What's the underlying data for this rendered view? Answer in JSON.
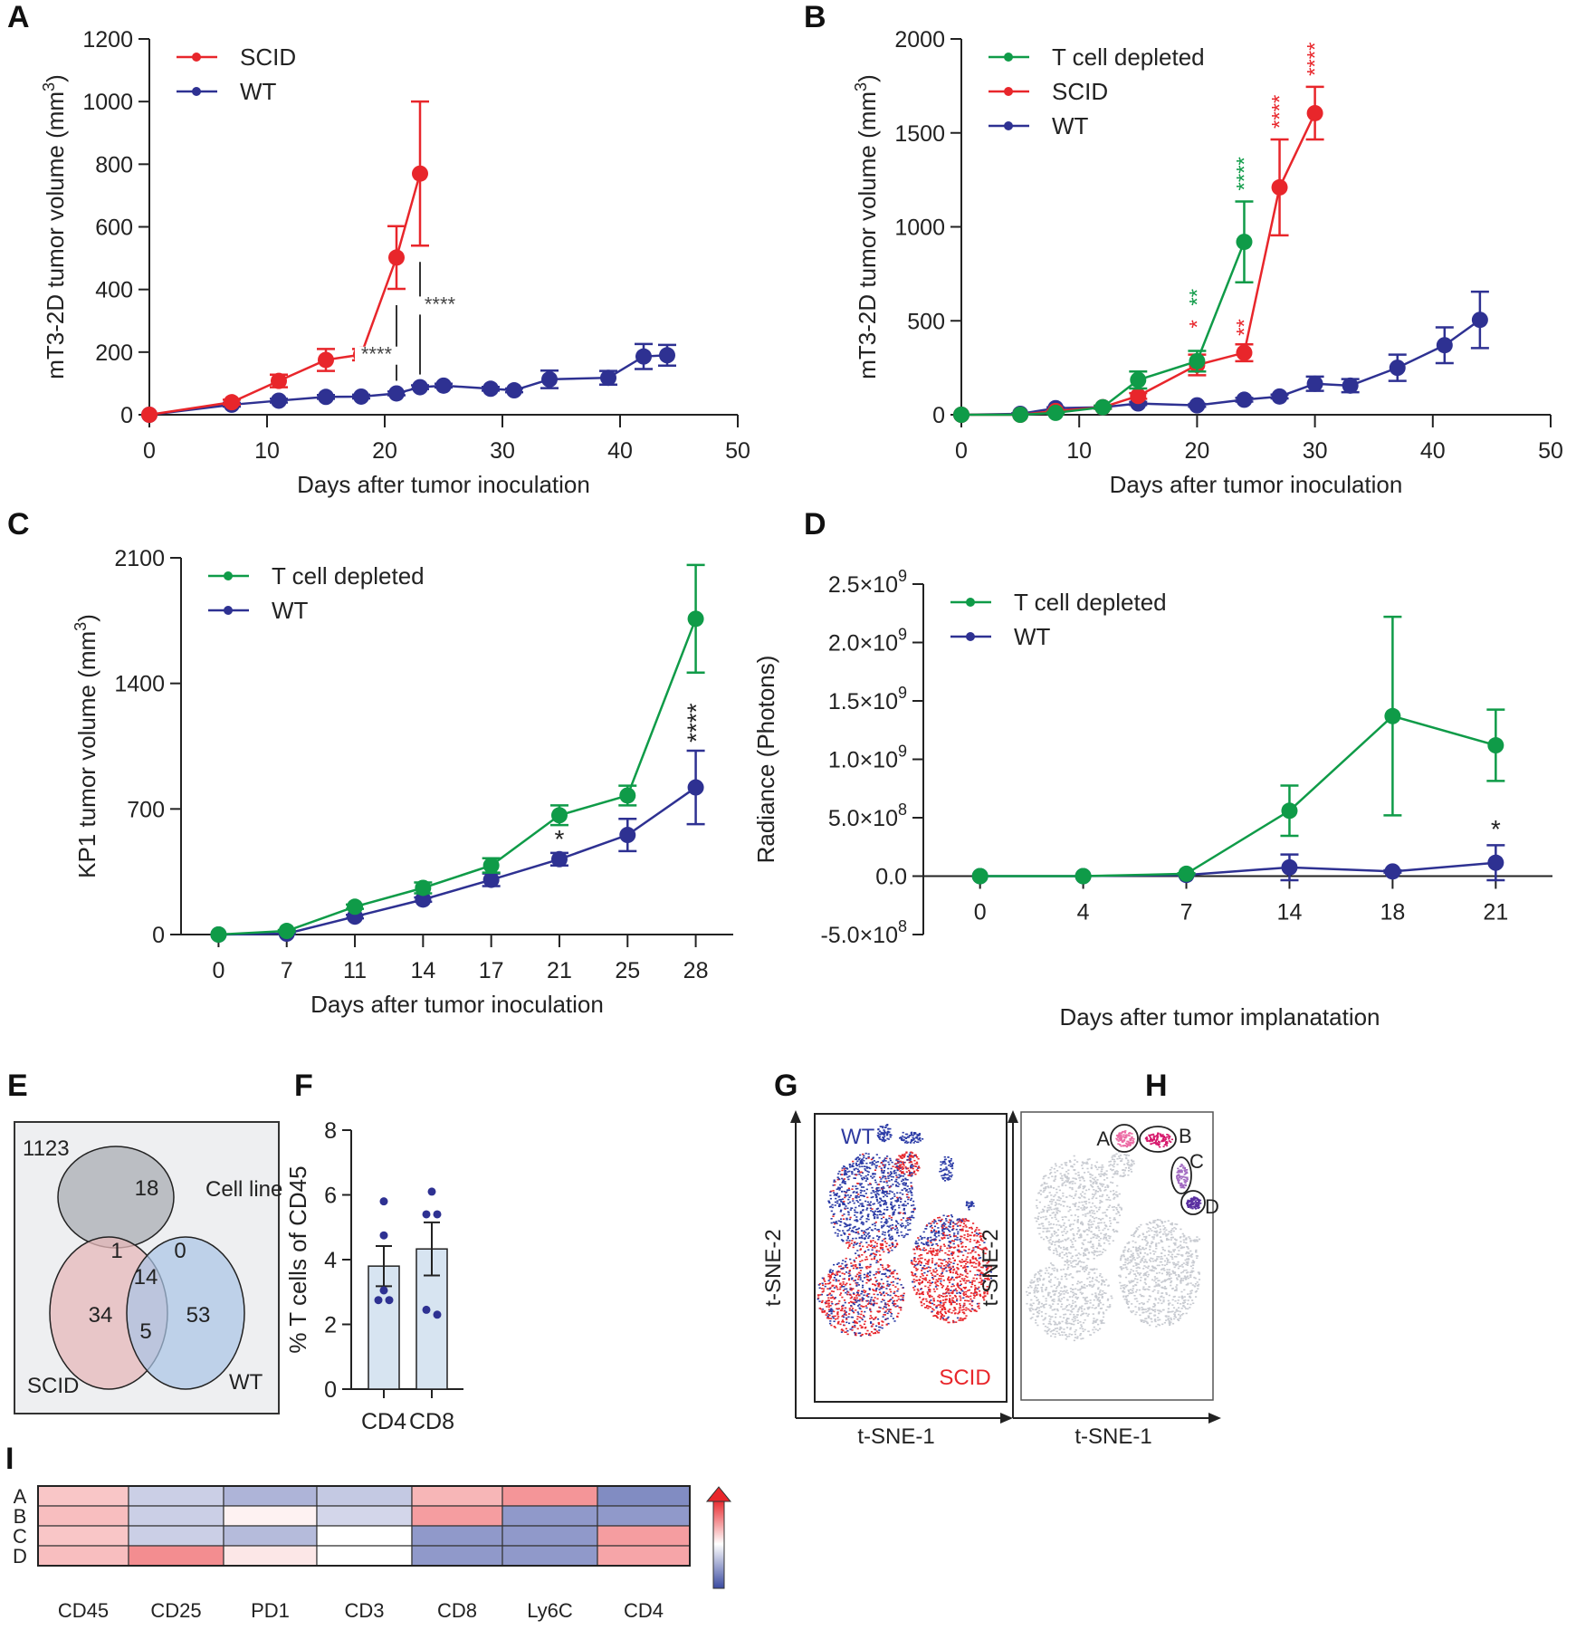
{
  "chart_data": [
    {
      "panel": "A",
      "type": "line",
      "title": "",
      "xlabel": "Days after tumor inoculation",
      "ylabel": "mT3-2D tumor volume (mm3)",
      "xlim": [
        0,
        50
      ],
      "ylim": [
        0,
        1200
      ],
      "xticks": [
        0,
        10,
        20,
        30,
        40,
        50
      ],
      "yticks": [
        0,
        200,
        400,
        600,
        800,
        1000,
        1200
      ],
      "legend": "top-left",
      "series": [
        {
          "name": "SCID",
          "color": "#e8262b",
          "x": [
            0,
            7,
            11,
            15,
            18,
            21,
            23
          ],
          "y": [
            0,
            40,
            108,
            175,
            192,
            502,
            770
          ],
          "err": [
            0,
            8,
            20,
            35,
            18,
            100,
            230
          ]
        },
        {
          "name": "WT",
          "color": "#2e3192",
          "x": [
            0,
            7,
            11,
            15,
            18,
            21,
            23,
            25,
            29,
            31,
            34,
            39,
            42,
            44
          ],
          "y": [
            0,
            32,
            45,
            57,
            58,
            68,
            88,
            93,
            83,
            78,
            113,
            118,
            186,
            190
          ],
          "err": [
            0,
            6,
            6,
            6,
            6,
            6,
            6,
            6,
            6,
            6,
            28,
            22,
            40,
            33
          ]
        }
      ],
      "annotations": [
        {
          "text": "****",
          "x": 21,
          "color": "#444444"
        },
        {
          "text": "****",
          "x": 23,
          "color": "#444444"
        }
      ]
    },
    {
      "panel": "B",
      "type": "line",
      "title": "",
      "xlabel": "Days after tumor inoculation",
      "ylabel": "mT3-2D tumor volume (mm3)",
      "xlim": [
        0,
        50
      ],
      "ylim": [
        0,
        2000
      ],
      "xticks": [
        0,
        10,
        20,
        30,
        40,
        50
      ],
      "yticks": [
        0,
        500,
        1000,
        1500,
        2000
      ],
      "legend": "top-left",
      "series": [
        {
          "name": "T cell depleted",
          "color": "#0f9b48",
          "x": [
            0,
            5,
            8,
            12,
            15,
            20,
            24
          ],
          "y": [
            0,
            0,
            10,
            40,
            185,
            285,
            920
          ],
          "err": [
            0,
            0,
            5,
            8,
            45,
            55,
            215
          ]
        },
        {
          "name": "SCID",
          "color": "#e8262b",
          "x": [
            0,
            5,
            8,
            12,
            15,
            20,
            24,
            27,
            30
          ],
          "y": [
            0,
            0,
            20,
            40,
            100,
            265,
            330,
            1210,
            1605
          ],
          "err": [
            0,
            0,
            5,
            8,
            15,
            55,
            45,
            255,
            140
          ]
        },
        {
          "name": "WT",
          "color": "#2e3192",
          "x": [
            0,
            5,
            8,
            12,
            15,
            20,
            24,
            27,
            30,
            33,
            37,
            41,
            44
          ],
          "y": [
            0,
            5,
            35,
            40,
            60,
            50,
            80,
            97,
            165,
            155,
            250,
            370,
            505
          ],
          "err": [
            0,
            3,
            5,
            5,
            8,
            8,
            10,
            10,
            38,
            35,
            70,
            95,
            150
          ]
        }
      ],
      "annotations": [
        {
          "text": "**",
          "x": 20,
          "series": "T cell depleted",
          "color": "#0f9b48"
        },
        {
          "text": "*",
          "x": 20,
          "series": "SCID",
          "color": "#e8262b"
        },
        {
          "text": "****",
          "x": 24,
          "series": "T cell depleted",
          "color": "#0f9b48"
        },
        {
          "text": "**",
          "x": 24,
          "series": "SCID",
          "color": "#e8262b"
        },
        {
          "text": "****",
          "x": 27,
          "series": "SCID",
          "color": "#e8262b"
        },
        {
          "text": "****",
          "x": 30,
          "series": "SCID",
          "color": "#e8262b"
        }
      ]
    },
    {
      "panel": "C",
      "type": "line",
      "title": "",
      "xlabel": "Days after tumor inoculation",
      "ylabel": "KP1 tumor volume (mm3)",
      "categories": [
        "0",
        "7",
        "11",
        "14",
        "17",
        "21",
        "25",
        "28"
      ],
      "ylim": [
        0,
        2100
      ],
      "yticks": [
        0,
        700,
        1400,
        2100
      ],
      "legend": "top-left",
      "series": [
        {
          "name": "T cell depleted",
          "color": "#0f9b48",
          "y": [
            0,
            20,
            155,
            260,
            385,
            665,
            775,
            1760
          ],
          "err": [
            0,
            5,
            12,
            30,
            40,
            55,
            55,
            300
          ]
        },
        {
          "name": "WT",
          "color": "#2e3192",
          "y": [
            0,
            5,
            100,
            195,
            305,
            420,
            555,
            820
          ],
          "err": [
            0,
            3,
            10,
            12,
            35,
            35,
            90,
            205
          ]
        }
      ],
      "annotations": [
        {
          "text": "*",
          "category": "21",
          "color": "#222222"
        },
        {
          "text": "****",
          "category": "28",
          "color": "#222222"
        }
      ]
    },
    {
      "panel": "D",
      "type": "line",
      "title": "",
      "xlabel": "Days after tumor implanatation",
      "ylabel": "Radiance (Photons)",
      "categories": [
        "0",
        "4",
        "7",
        "14",
        "18",
        "21"
      ],
      "ylim": [
        -500000000,
        2500000000
      ],
      "yticks": [
        -500000000,
        0,
        500000000,
        1000000000,
        1500000000,
        2000000000,
        2500000000
      ],
      "ytick_labels": [
        "-5.0×10^8",
        "0.0",
        "5.0×10^8",
        "1.0×10^9",
        "1.5×10^9",
        "2.0×10^9",
        "2.5×10^9"
      ],
      "legend": "top-left",
      "series": [
        {
          "name": "T cell depleted",
          "color": "#0f9b48",
          "y": [
            0,
            0,
            20000000,
            560000000,
            1370000000,
            1120000000
          ],
          "err": [
            0,
            0,
            5000000,
            215000000,
            850000000,
            305000000
          ]
        },
        {
          "name": "WT",
          "color": "#2e3192",
          "y": [
            0,
            0,
            10000000,
            75000000,
            40000000,
            115000000
          ],
          "err": [
            0,
            0,
            3000000,
            110000000,
            10000000,
            150000000
          ]
        }
      ],
      "annotations": [
        {
          "text": "*",
          "category": "21",
          "color": "#222222"
        }
      ]
    },
    {
      "panel": "E",
      "type": "venn",
      "outside_count": "1123",
      "sets": [
        {
          "name": "Cell line",
          "color": "#a9adb3"
        },
        {
          "name": "SCID",
          "color": "#e5b8b9"
        },
        {
          "name": "WT",
          "color": "#a9c4e6"
        }
      ],
      "regions": [
        {
          "sets": [
            "Cell line"
          ],
          "count": "18"
        },
        {
          "sets": [
            "SCID"
          ],
          "count": "34"
        },
        {
          "sets": [
            "WT"
          ],
          "count": "53"
        },
        {
          "sets": [
            "Cell line",
            "SCID"
          ],
          "count": "1"
        },
        {
          "sets": [
            "Cell line",
            "WT"
          ],
          "count": "0"
        },
        {
          "sets": [
            "SCID",
            "WT"
          ],
          "count": "5"
        },
        {
          "sets": [
            "Cell line",
            "SCID",
            "WT"
          ],
          "count": "14"
        }
      ]
    },
    {
      "panel": "F",
      "type": "bar",
      "title": "",
      "ylabel": "% T cells of CD45",
      "categories": [
        "CD4",
        "CD8"
      ],
      "values": [
        3.8,
        4.33
      ],
      "err": [
        0.62,
        0.82
      ],
      "points": [
        [
          5.8,
          4.75,
          3.05,
          2.75,
          2.75
        ],
        [
          6.1,
          5.4,
          5.4,
          2.45,
          2.3
        ]
      ],
      "ylim": [
        0,
        8
      ],
      "yticks": [
        0,
        2,
        4,
        6,
        8
      ],
      "bar_color": "#d7e4f1",
      "point_color": "#2e3192"
    },
    {
      "panel": "G",
      "type": "scatter",
      "xlabel": "t-SNE-1",
      "ylabel": "t-SNE-2",
      "labels": [
        {
          "text": "WT",
          "color": "#2e3aa0",
          "position": "top-left"
        },
        {
          "text": "SCID",
          "color": "#e8262b",
          "position": "bottom-right"
        }
      ]
    },
    {
      "panel": "H",
      "type": "scatter",
      "xlabel": "t-SNE-1",
      "ylabel": "t-SNE-2",
      "clusters": [
        {
          "label": "A",
          "color": "#ec6aa4"
        },
        {
          "label": "B",
          "color": "#d6166b"
        },
        {
          "label": "C",
          "color": "#a36cc2"
        },
        {
          "label": "D",
          "color": "#5a2fa0"
        }
      ],
      "background_color": "#c8cbd1"
    },
    {
      "panel": "I",
      "type": "heatmap",
      "rows": [
        "A",
        "B",
        "C",
        "D"
      ],
      "columns": [
        "CD45",
        "CD25",
        "PD1",
        "CD3",
        "CD8",
        "Ly6C",
        "CD4"
      ],
      "values": [
        [
          0.35,
          -0.35,
          -0.55,
          -0.4,
          0.45,
          0.65,
          -0.85
        ],
        [
          0.4,
          -0.35,
          0.08,
          -0.3,
          0.6,
          -0.75,
          -0.75
        ],
        [
          0.35,
          -0.35,
          -0.5,
          0.0,
          -0.75,
          -0.75,
          0.6
        ],
        [
          0.4,
          0.7,
          0.15,
          0.0,
          -0.75,
          -0.75,
          0.55
        ]
      ],
      "scale": {
        "low": "#3a4aa0",
        "mid": "#ffffff",
        "high": "#e8262b"
      }
    }
  ],
  "panel_letters": [
    "A",
    "B",
    "C",
    "D",
    "E",
    "F",
    "G",
    "H",
    "I"
  ]
}
